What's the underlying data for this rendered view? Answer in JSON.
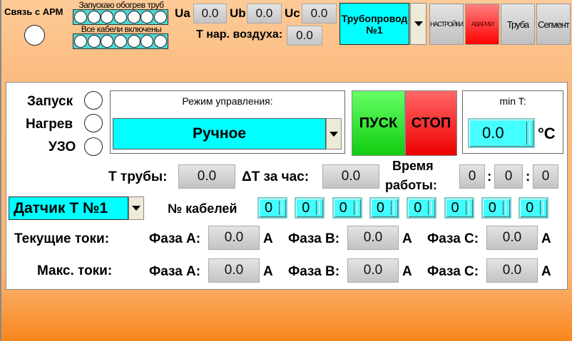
{
  "header": {
    "link_label": "Связь с АРМ",
    "heating_label": "Запускаю обогрев труб",
    "cables_label": "Все кабели включены",
    "ua_label": "Ua",
    "ua": "0.0",
    "ub_label": "Ub",
    "ub": "0.0",
    "uc_label": "Uc",
    "uc": "0.0",
    "air_label": "T нар. воздуха:",
    "air": "0.0",
    "pipeline": "Трубопровод №1",
    "buttons": {
      "settings": "НАСТРОЙКИ",
      "alarms": "АВАРИИ",
      "pipe": "Труба",
      "segment": "Сегмент"
    }
  },
  "panel": {
    "start_label": "Запуск",
    "heat_label": "Нагрев",
    "uzo_label": "УЗО",
    "mode_title": "Режим управления:",
    "mode_value": "Ручное",
    "start_btn": "ПУСК",
    "stop_btn": "СТОП",
    "min_t_label": "min T:",
    "min_t": "0.0",
    "unit_c": "°C",
    "t_pipe_label": "T трубы:",
    "t_pipe": "0.0",
    "dt_label": "ΔT за час:",
    "dt": "0.0",
    "time_label1": "Время",
    "time_label2": "работы:",
    "time_h": "0",
    "time_m": "0",
    "time_s": "0",
    "sep": ":",
    "sensor": "Датчик T №1",
    "cables_label": "№ кабелей",
    "cables": [
      "0",
      "0",
      "0",
      "0",
      "0",
      "0",
      "0",
      "0"
    ],
    "cur_label": "Текущие токи:",
    "max_label": "Макс. токи:",
    "phase_a": "Фаза А:",
    "phase_b": "Фаза В:",
    "phase_c": "Фаза С:",
    "amp": "А",
    "cur": {
      "a": "0.0",
      "b": "0.0",
      "c": "0.0"
    },
    "max": {
      "a": "0.0",
      "b": "0.0",
      "c": "0.0"
    }
  },
  "colors": {
    "cyan": "#00ffff",
    "start": "#22dd22",
    "stop": "#ee1111"
  }
}
